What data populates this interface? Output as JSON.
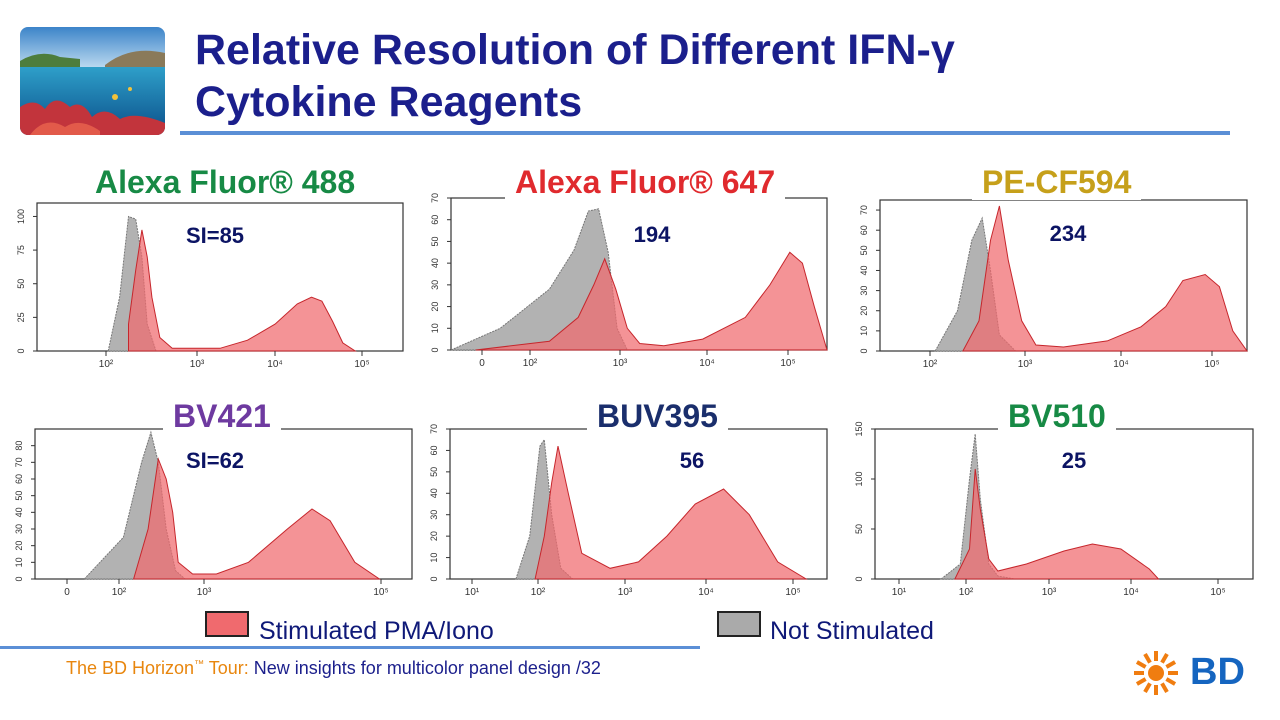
{
  "slide": {
    "title_line1": "Relative Resolution of Different IFN-γ",
    "title_line2": "Cytokine Reagents",
    "footer_brand": "The BD Horizon",
    "footer_tm": "™",
    "footer_tour": " Tour:",
    "footer_text": " New insights for multicolor panel design /32",
    "logo_text": "BD"
  },
  "legend": {
    "stimulated": "Stimulated PMA/Iono",
    "not_stimulated": "Not Stimulated",
    "stimulated_color": "#f06a6e",
    "not_stimulated_color": "#aaaaaa"
  },
  "chart_data": [
    {
      "type": "area",
      "title": "Alexa Fluor® 488",
      "title_color": "#178a45",
      "annotation": "SI=85",
      "xlabel": "",
      "ylabel": "",
      "x_scale": "log",
      "xlim": [
        10,
        100000
      ],
      "ylim": [
        0,
        110
      ],
      "x_ticks": [
        "10²",
        "10³",
        "10⁴",
        "10⁵"
      ],
      "y_ticks": [
        0,
        25,
        50,
        75,
        100
      ],
      "series": [
        {
          "role": "not_stimulated",
          "x": [
            60,
            80,
            100,
            120,
            140,
            160,
            200,
            300
          ],
          "y": [
            0,
            40,
            100,
            98,
            70,
            20,
            0,
            0
          ]
        },
        {
          "role": "stimulated",
          "x": [
            100,
            120,
            140,
            160,
            180,
            220,
            300,
            500,
            1000,
            2000,
            4000,
            7000,
            10000,
            13000,
            17000,
            22000,
            30000
          ],
          "y": [
            20,
            60,
            90,
            70,
            40,
            10,
            2,
            2,
            2,
            8,
            20,
            35,
            40,
            37,
            22,
            6,
            0
          ]
        }
      ]
    },
    {
      "type": "area",
      "title": "Alexa Fluor® 647",
      "title_color": "#e02a2e",
      "annotation": "194",
      "xlabel": "",
      "ylabel": "",
      "x_scale": "biexponential",
      "xlim": [
        -30,
        100000
      ],
      "ylim": [
        0,
        70
      ],
      "x_ticks": [
        "0",
        "10²",
        "10³",
        "10⁴",
        "10⁵"
      ],
      "y_ticks": [
        0,
        10,
        20,
        30,
        40,
        50,
        60,
        70
      ],
      "series": [
        {
          "role": "not_stimulated",
          "x": [
            -30,
            0,
            30,
            70,
            110,
            150,
            200,
            260,
            350
          ],
          "y": [
            0,
            10,
            28,
            46,
            64,
            65,
            45,
            10,
            0
          ]
        },
        {
          "role": "stimulated",
          "x": [
            -10,
            30,
            80,
            130,
            180,
            250,
            350,
            500,
            1000,
            3000,
            10000,
            20000,
            35000,
            50000,
            70000,
            100000
          ],
          "y": [
            0,
            4,
            15,
            30,
            42,
            28,
            10,
            3,
            2,
            5,
            15,
            30,
            45,
            40,
            20,
            0
          ]
        }
      ]
    },
    {
      "type": "area",
      "title": "PE-CF594",
      "title_color": "#c6a01a",
      "annotation": "234",
      "xlabel": "",
      "ylabel": "",
      "x_scale": "log",
      "xlim": [
        10,
        100000
      ],
      "ylim": [
        0,
        75
      ],
      "x_ticks": [
        "10²",
        "10³",
        "10⁴",
        "10⁵"
      ],
      "y_ticks": [
        0,
        10,
        20,
        30,
        40,
        50,
        60,
        70
      ],
      "series": [
        {
          "role": "not_stimulated",
          "x": [
            40,
            70,
            100,
            130,
            160,
            200,
            300
          ],
          "y": [
            0,
            20,
            55,
            66,
            40,
            8,
            0
          ]
        },
        {
          "role": "stimulated",
          "x": [
            80,
            120,
            160,
            200,
            250,
            350,
            500,
            1000,
            3000,
            7000,
            13000,
            20000,
            35000,
            50000,
            70000,
            100000
          ],
          "y": [
            0,
            15,
            55,
            72,
            45,
            15,
            3,
            2,
            5,
            12,
            22,
            35,
            38,
            32,
            10,
            0
          ]
        }
      ]
    },
    {
      "type": "area",
      "title": "BV421",
      "title_color": "#6e3aa0",
      "annotation": "SI=62",
      "xlabel": "",
      "ylabel": "",
      "x_scale": "biexponential",
      "xlim": [
        -30,
        100000
      ],
      "ylim": [
        0,
        90
      ],
      "x_ticks": [
        "0",
        "10²",
        "10³",
        "10⁵"
      ],
      "y_ticks": [
        0,
        10,
        20,
        30,
        40,
        50,
        60,
        70,
        80
      ],
      "series": [
        {
          "role": "not_stimulated",
          "x": [
            0,
            20,
            40,
            55,
            70,
            90,
            120,
            160
          ],
          "y": [
            0,
            25,
            70,
            88,
            70,
            30,
            5,
            0
          ]
        },
        {
          "role": "stimulated",
          "x": [
            30,
            50,
            70,
            90,
            110,
            130,
            200,
            400,
            1000,
            3000,
            6000,
            10000,
            20000,
            40000
          ],
          "y": [
            0,
            30,
            72,
            60,
            40,
            10,
            3,
            3,
            10,
            30,
            42,
            35,
            10,
            0
          ]
        }
      ]
    },
    {
      "type": "area",
      "title": "BUV395",
      "title_color": "#1a2e6c",
      "annotation": "56",
      "xlabel": "",
      "ylabel": "",
      "x_scale": "log",
      "xlim": [
        10,
        100000
      ],
      "ylim": [
        0,
        70
      ],
      "x_ticks": [
        "10¹",
        "10²",
        "10³",
        "10⁴",
        "10⁵"
      ],
      "y_ticks": [
        0,
        10,
        20,
        30,
        40,
        50,
        60,
        70
      ],
      "series": [
        {
          "role": "not_stimulated",
          "x": [
            50,
            70,
            90,
            100,
            120,
            150,
            200
          ],
          "y": [
            0,
            20,
            62,
            65,
            30,
            5,
            0
          ]
        },
        {
          "role": "stimulated",
          "x": [
            80,
            100,
            120,
            140,
            180,
            250,
            500,
            1000,
            2000,
            4000,
            8000,
            15000,
            30000,
            60000
          ],
          "y": [
            0,
            20,
            45,
            62,
            40,
            12,
            5,
            8,
            20,
            35,
            42,
            30,
            8,
            0
          ]
        }
      ]
    },
    {
      "type": "area",
      "title": "BV510",
      "title_color": "#178a45",
      "annotation": "25",
      "xlabel": "",
      "ylabel": "",
      "x_scale": "log",
      "xlim": [
        10,
        100000
      ],
      "ylim": [
        0,
        150
      ],
      "x_ticks": [
        "10¹",
        "10²",
        "10³",
        "10⁴",
        "10⁵"
      ],
      "y_ticks": [
        0,
        50,
        100,
        150
      ],
      "series": [
        {
          "role": "not_stimulated",
          "x": [
            50,
            80,
            100,
            115,
            130,
            160,
            200,
            300
          ],
          "y": [
            0,
            15,
            100,
            145,
            80,
            15,
            3,
            0
          ]
        },
        {
          "role": "stimulated",
          "x": [
            70,
            100,
            115,
            130,
            160,
            200,
            400,
            1000,
            2000,
            4000,
            8000,
            10000
          ],
          "y": [
            0,
            30,
            110,
            70,
            20,
            8,
            15,
            28,
            35,
            30,
            10,
            0
          ]
        }
      ]
    }
  ]
}
